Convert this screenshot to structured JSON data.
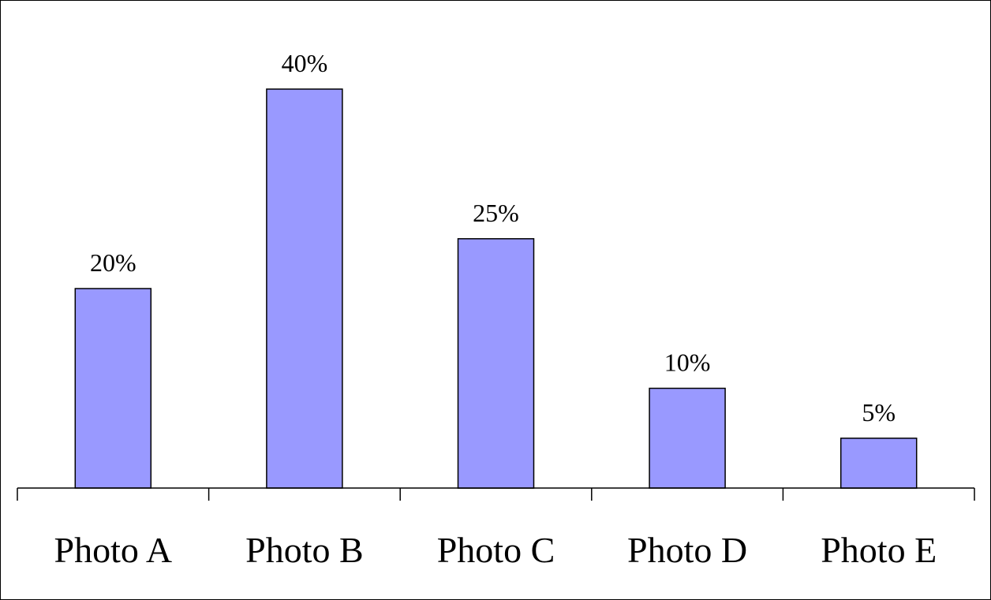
{
  "chart_data": {
    "type": "bar",
    "categories": [
      "Photo A",
      "Photo B",
      "Photo C",
      "Photo D",
      "Photo E"
    ],
    "values": [
      20,
      40,
      25,
      10,
      5
    ],
    "data_labels": [
      "20%",
      "40%",
      "25%",
      "10%",
      "5%"
    ],
    "title": "",
    "xlabel": "",
    "ylabel": "",
    "ylim": [
      0,
      40
    ],
    "grid": false,
    "legend": "none",
    "bar_color": "#9999ff",
    "edge_color": "#000000"
  }
}
